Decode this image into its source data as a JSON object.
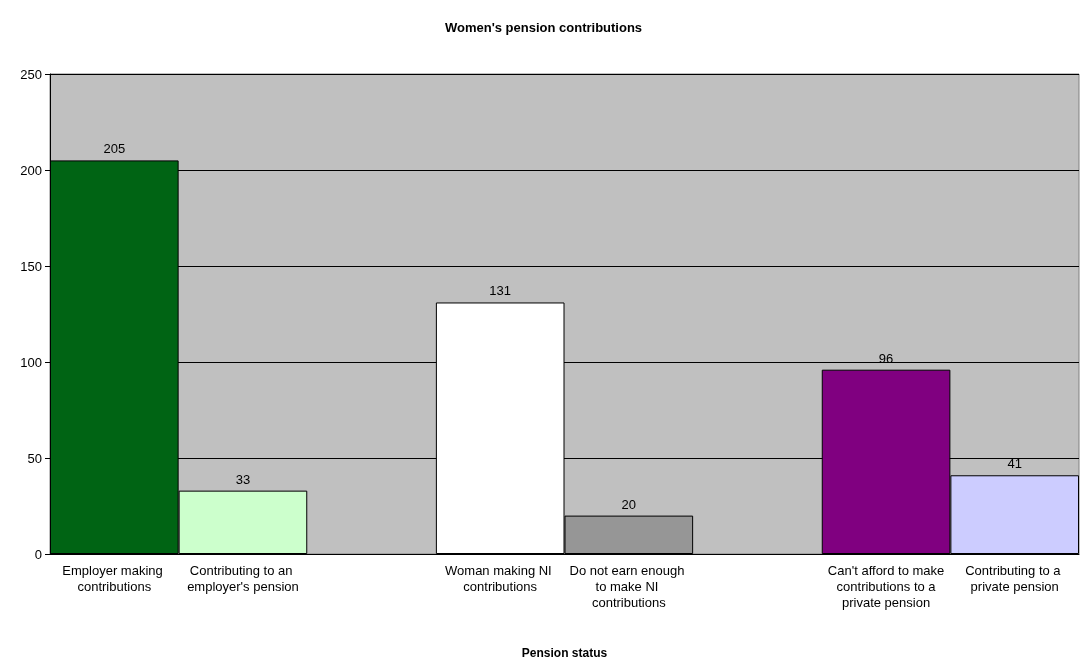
{
  "chart_data": {
    "type": "bar",
    "title": "Women's pension contributions",
    "xlabel": "Pension status",
    "categories": [
      "Employer making contributions",
      "Contributing to an employer's pension",
      null,
      "Woman making NI contributions",
      "Do not earn enough to make NI contributions",
      null,
      "Can't afford to make contributions to a private pension",
      "Contributing to a private pension"
    ],
    "values": [
      205,
      33,
      null,
      131,
      20,
      null,
      96,
      41
    ],
    "colors": [
      "#006414",
      "#ccffcc",
      "#ffffff",
      "#ffffff",
      "#969696",
      "#ffffff",
      "#800080",
      "#ccccff"
    ],
    "data_labels": true,
    "ylim": [
      0,
      250
    ],
    "yticks": [
      0,
      50,
      100,
      150,
      200,
      250
    ],
    "grid": "y"
  }
}
